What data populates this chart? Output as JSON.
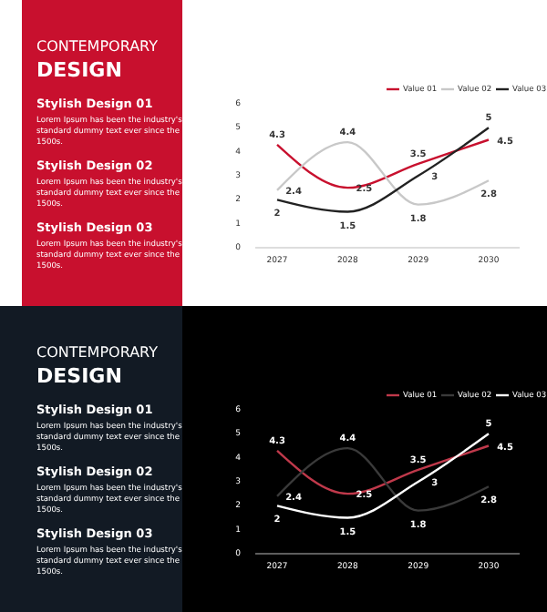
{
  "chart_data": [
    {
      "type": "other",
      "title": "CONTEMPORARY",
      "subtitle": "DESIGN",
      "annotations": [
        "Stylish Design 01",
        "Lorem Ipsum has been the industry's standard dummy text ever since the 1500s.",
        "Stylish Design 02",
        "Lorem Ipsum has been the industry's standard dummy text ever since the 1500s.",
        "Stylish Design 03",
        "Lorem Ipsum has been the industry's standard dummy text ever since the 1500s."
      ]
    },
    {
      "type": "line",
      "categories": [
        "2027",
        "2028",
        "2029",
        "2030"
      ],
      "ylim": [
        0,
        6
      ],
      "yticks": [
        0,
        1,
        2,
        3,
        4,
        5,
        6
      ],
      "data_labels": true,
      "legend": "top right",
      "line_style": "solid",
      "series": [
        {
          "name": "Value 01",
          "color": "#c8102e",
          "values": [
            4.3,
            2.5,
            3.5,
            4.5
          ]
        },
        {
          "name": "Value 02",
          "color": "#c8c8c8",
          "values": [
            2.4,
            4.4,
            1.8,
            2.8
          ]
        },
        {
          "name": "Value 03",
          "color": "#222222",
          "values": [
            2,
            1.5,
            3,
            5
          ]
        }
      ]
    },
    {
      "type": "other",
      "title": "CONTEMPORARY",
      "subtitle": "DESIGN",
      "annotations": [
        "Stylish Design 01",
        "Lorem Ipsum has been the industry's standard dummy text ever since the 1500s.",
        "Stylish Design 02",
        "Lorem Ipsum has been the industry's standard dummy text ever since the 1500s.",
        "Stylish Design 03",
        "Lorem Ipsum has been the industry's standard dummy text ever since the 1500s."
      ]
    },
    {
      "type": "line",
      "categories": [
        "2027",
        "2028",
        "2029",
        "2030"
      ],
      "ylim": [
        0,
        6
      ],
      "yticks": [
        0,
        1,
        2,
        3,
        4,
        5,
        6
      ],
      "data_labels": true,
      "legend": "top right",
      "line_style": "solid",
      "series": [
        {
          "name": "Value 01",
          "color": "#c0394b",
          "values": [
            4.3,
            2.5,
            3.5,
            4.5
          ]
        },
        {
          "name": "Value 02",
          "color": "#3a3a3a",
          "values": [
            2.4,
            4.4,
            1.8,
            2.8
          ]
        },
        {
          "name": "Value 03",
          "color": "#ffffff",
          "values": [
            2,
            1.5,
            3,
            5
          ]
        }
      ]
    }
  ]
}
